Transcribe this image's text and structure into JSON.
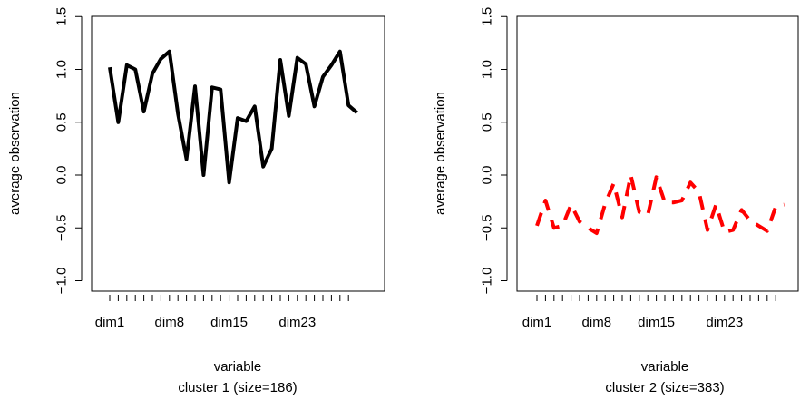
{
  "chart_data": [
    {
      "type": "line",
      "xlabel": "variable",
      "subtitle": "cluster 1 (size=186)",
      "ylabel": "average observation",
      "ylim": [
        -1.0,
        1.5
      ],
      "yticks": [
        "−1.0",
        "−0.5",
        "0.0",
        "0.5",
        "1.0",
        "1.5"
      ],
      "ytick_values": [
        -1.0,
        -0.5,
        0.0,
        0.5,
        1.0,
        1.5
      ],
      "x_tick_count": 29,
      "x_tick_labels": [
        {
          "index": 1,
          "label": "dim1"
        },
        {
          "index": 8,
          "label": "dim8"
        },
        {
          "index": 15,
          "label": "dim15"
        },
        {
          "index": 23,
          "label": "dim23"
        }
      ],
      "series": [
        {
          "color": "#000000",
          "dash": "solid",
          "values": [
            1.02,
            0.5,
            1.04,
            1.0,
            0.6,
            0.96,
            1.1,
            1.17,
            0.58,
            0.15,
            0.84,
            0.0,
            0.83,
            0.81,
            -0.07,
            0.54,
            0.51,
            0.65,
            0.08,
            0.25,
            1.09,
            0.56,
            1.11,
            1.05,
            0.65,
            0.93,
            1.04,
            1.17,
            0.66,
            0.59
          ]
        }
      ]
    },
    {
      "type": "line",
      "xlabel": "variable",
      "subtitle": "cluster 2 (size=383)",
      "ylabel": "average observation",
      "ylim": [
        -1.0,
        1.5
      ],
      "yticks": [
        "−1.0",
        "−0.5",
        "0.0",
        "0.5",
        "1.0",
        "1.5"
      ],
      "ytick_values": [
        -1.0,
        -0.5,
        0.0,
        0.5,
        1.0,
        1.5
      ],
      "x_tick_count": 29,
      "x_tick_labels": [
        {
          "index": 1,
          "label": "dim1"
        },
        {
          "index": 8,
          "label": "dim8"
        },
        {
          "index": 15,
          "label": "dim15"
        },
        {
          "index": 23,
          "label": "dim23"
        }
      ],
      "series": [
        {
          "color": "#ff0000",
          "dash": "dashed",
          "values": [
            -0.48,
            -0.24,
            -0.5,
            -0.48,
            -0.28,
            -0.44,
            -0.5,
            -0.55,
            -0.27,
            -0.08,
            -0.4,
            0.0,
            -0.35,
            -0.38,
            -0.02,
            -0.26,
            -0.26,
            -0.24,
            -0.07,
            -0.16,
            -0.52,
            -0.28,
            -0.54,
            -0.52,
            -0.33,
            -0.43,
            -0.48,
            -0.53,
            -0.3,
            -0.28
          ]
        }
      ]
    }
  ]
}
